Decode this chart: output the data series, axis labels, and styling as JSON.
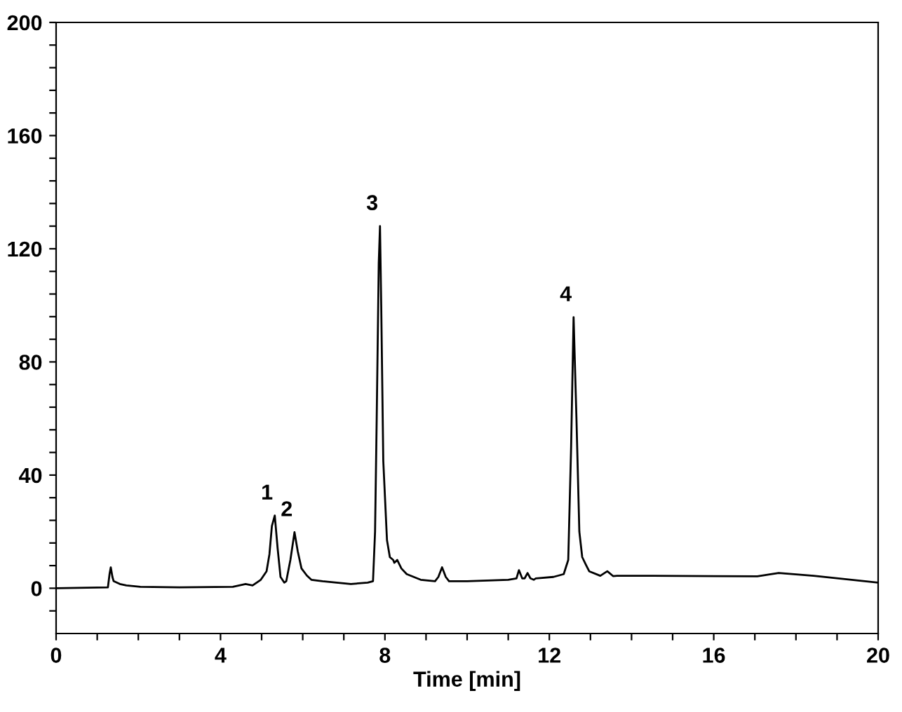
{
  "chart_data": {
    "type": "line",
    "xlabel": "Time [min]",
    "xlim": [
      0,
      20
    ],
    "ylim": [
      -16,
      200
    ],
    "xticks": [
      0,
      {
        "value": 1,
        "label": null
      },
      {
        "value": 2,
        "label": null
      },
      {
        "value": 3,
        "label": null
      },
      4,
      {
        "value": 5,
        "label": null
      },
      {
        "value": 6,
        "label": null
      },
      {
        "value": 7,
        "label": null
      },
      8,
      {
        "value": 9,
        "label": null
      },
      {
        "value": 10,
        "label": null
      },
      {
        "value": 11,
        "label": null
      },
      12,
      {
        "value": 13,
        "label": null
      },
      {
        "value": 14,
        "label": null
      },
      {
        "value": 15,
        "label": null
      },
      16,
      {
        "value": 17,
        "label": null
      },
      {
        "value": 18,
        "label": null
      },
      {
        "value": 19,
        "label": null
      },
      20
    ],
    "yticks": [
      {
        "value": -8,
        "label": null
      },
      0,
      {
        "value": 8,
        "label": null
      },
      {
        "value": 16,
        "label": null
      },
      {
        "value": 24,
        "label": null
      },
      {
        "value": 32,
        "label": null
      },
      40,
      {
        "value": 48,
        "label": null
      },
      {
        "value": 56,
        "label": null
      },
      {
        "value": 64,
        "label": null
      },
      {
        "value": 72,
        "label": null
      },
      80,
      {
        "value": 88,
        "label": null
      },
      {
        "value": 96,
        "label": null
      },
      {
        "value": 104,
        "label": null
      },
      {
        "value": 112,
        "label": null
      },
      120,
      {
        "value": 128,
        "label": null
      },
      {
        "value": 136,
        "label": null
      },
      {
        "value": 144,
        "label": null
      },
      {
        "value": 152,
        "label": null
      },
      160,
      {
        "value": 168,
        "label": null
      },
      {
        "value": 176,
        "label": null
      },
      {
        "value": 184,
        "label": null
      },
      {
        "value": 192,
        "label": null
      },
      200
    ],
    "grid": false,
    "marker": "none",
    "line_style": "solid",
    "series": [
      {
        "color": "#000000",
        "x": [
          0,
          1.26,
          1.3,
          1.33,
          1.37,
          1.4,
          1.55,
          1.71,
          2.05,
          3.0,
          4.3,
          4.61,
          4.78,
          4.98,
          5.12,
          5.19,
          5.25,
          5.32,
          5.39,
          5.46,
          5.55,
          5.6,
          5.7,
          5.8,
          5.88,
          5.97,
          6.1,
          6.21,
          6.48,
          7.17,
          7.58,
          7.71,
          7.76,
          7.8,
          7.85,
          7.88,
          7.91,
          7.96,
          8.05,
          8.12,
          8.2,
          8.23,
          8.3,
          8.4,
          8.53,
          8.87,
          9.22,
          9.3,
          9.39,
          9.48,
          9.56,
          10.0,
          11.0,
          11.2,
          11.26,
          11.34,
          11.4,
          11.47,
          11.54,
          11.62,
          11.67,
          12.1,
          12.35,
          12.46,
          12.53,
          12.59,
          12.66,
          12.73,
          12.8,
          12.9,
          12.97,
          13.24,
          13.41,
          13.55,
          13.65,
          14.5,
          17.06,
          17.58,
          18.43,
          20
        ],
        "values": [
          0,
          0.3,
          5,
          7.4,
          4,
          2.5,
          1.5,
          1,
          0.5,
          0.3,
          0.5,
          1.5,
          1,
          3,
          6,
          12,
          22,
          25.7,
          14,
          4,
          2,
          2.5,
          10,
          19.8,
          13,
          7,
          4.5,
          3,
          2.5,
          1.5,
          2,
          2.5,
          20,
          60,
          115,
          128,
          100,
          45,
          17,
          11,
          10,
          9,
          10,
          7,
          5,
          3,
          2.5,
          4,
          7.4,
          4,
          2.5,
          2.5,
          3,
          3.5,
          6.4,
          3.5,
          3.5,
          5.4,
          3.5,
          3,
          3.5,
          4,
          5,
          10,
          50,
          95.8,
          60,
          20,
          11,
          8,
          6,
          4.4,
          6,
          4.3,
          4.4,
          4.4,
          4.2,
          5.4,
          4.4,
          2
        ]
      }
    ],
    "annotations": [
      {
        "text": "1",
        "x": 5.32,
        "y": 25.7
      },
      {
        "text": "2",
        "x": 5.8,
        "y": 19.8
      },
      {
        "text": "3",
        "x": 7.88,
        "y": 128
      },
      {
        "text": "4",
        "x": 12.59,
        "y": 95.8
      }
    ]
  }
}
